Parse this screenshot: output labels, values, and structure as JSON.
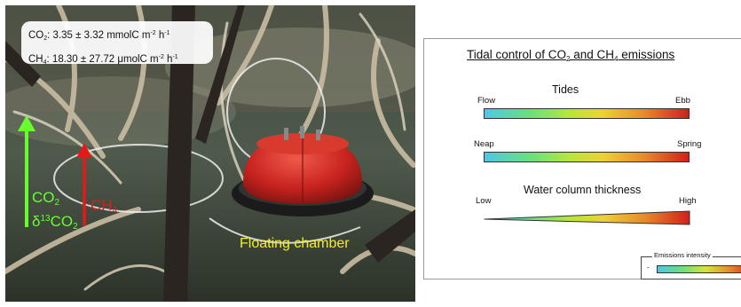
{
  "photo": {
    "flux": {
      "co2": {
        "gas": "CO",
        "sub": "2",
        "text": ": 3.35 ± 3.32 mmolC m",
        "exp1": "-2",
        "h": " h",
        "exp2": "-1"
      },
      "ch4": {
        "gas": "CH",
        "sub": "4",
        "text": ": 18.30 ± 27.72 μmolC m",
        "exp1": "-2",
        "h": " h",
        "exp2": "-1"
      }
    },
    "co2_label": {
      "line1": "CO",
      "line1_sub": "2",
      "delta": "δ",
      "sup": "13",
      "line2": "CO",
      "line2_sub": "2"
    },
    "ch4_label": {
      "text": "CH",
      "sub": "4"
    },
    "chamber_label": "Floating chamber",
    "colors": {
      "co2_arrow": "#66ff2e",
      "ch4_arrow": "#e21a1a",
      "chamber": "#c8231f",
      "text_yellow": "#f4ee2a"
    }
  },
  "diagram": {
    "title": {
      "pre": "Tidal control of CO",
      "sub1": "2",
      "mid": " and CH",
      "sub2": "4",
      "post": " emissions"
    },
    "sections": [
      {
        "title": "Tides",
        "left": "Flow",
        "right": "Ebb"
      },
      {
        "title": "",
        "left": "Neap",
        "right": "Spring"
      },
      {
        "title": "Water column thickness",
        "left": "Low",
        "right": "High"
      }
    ],
    "legend": {
      "title": "Emissions intensity",
      "min": "-"
    }
  }
}
